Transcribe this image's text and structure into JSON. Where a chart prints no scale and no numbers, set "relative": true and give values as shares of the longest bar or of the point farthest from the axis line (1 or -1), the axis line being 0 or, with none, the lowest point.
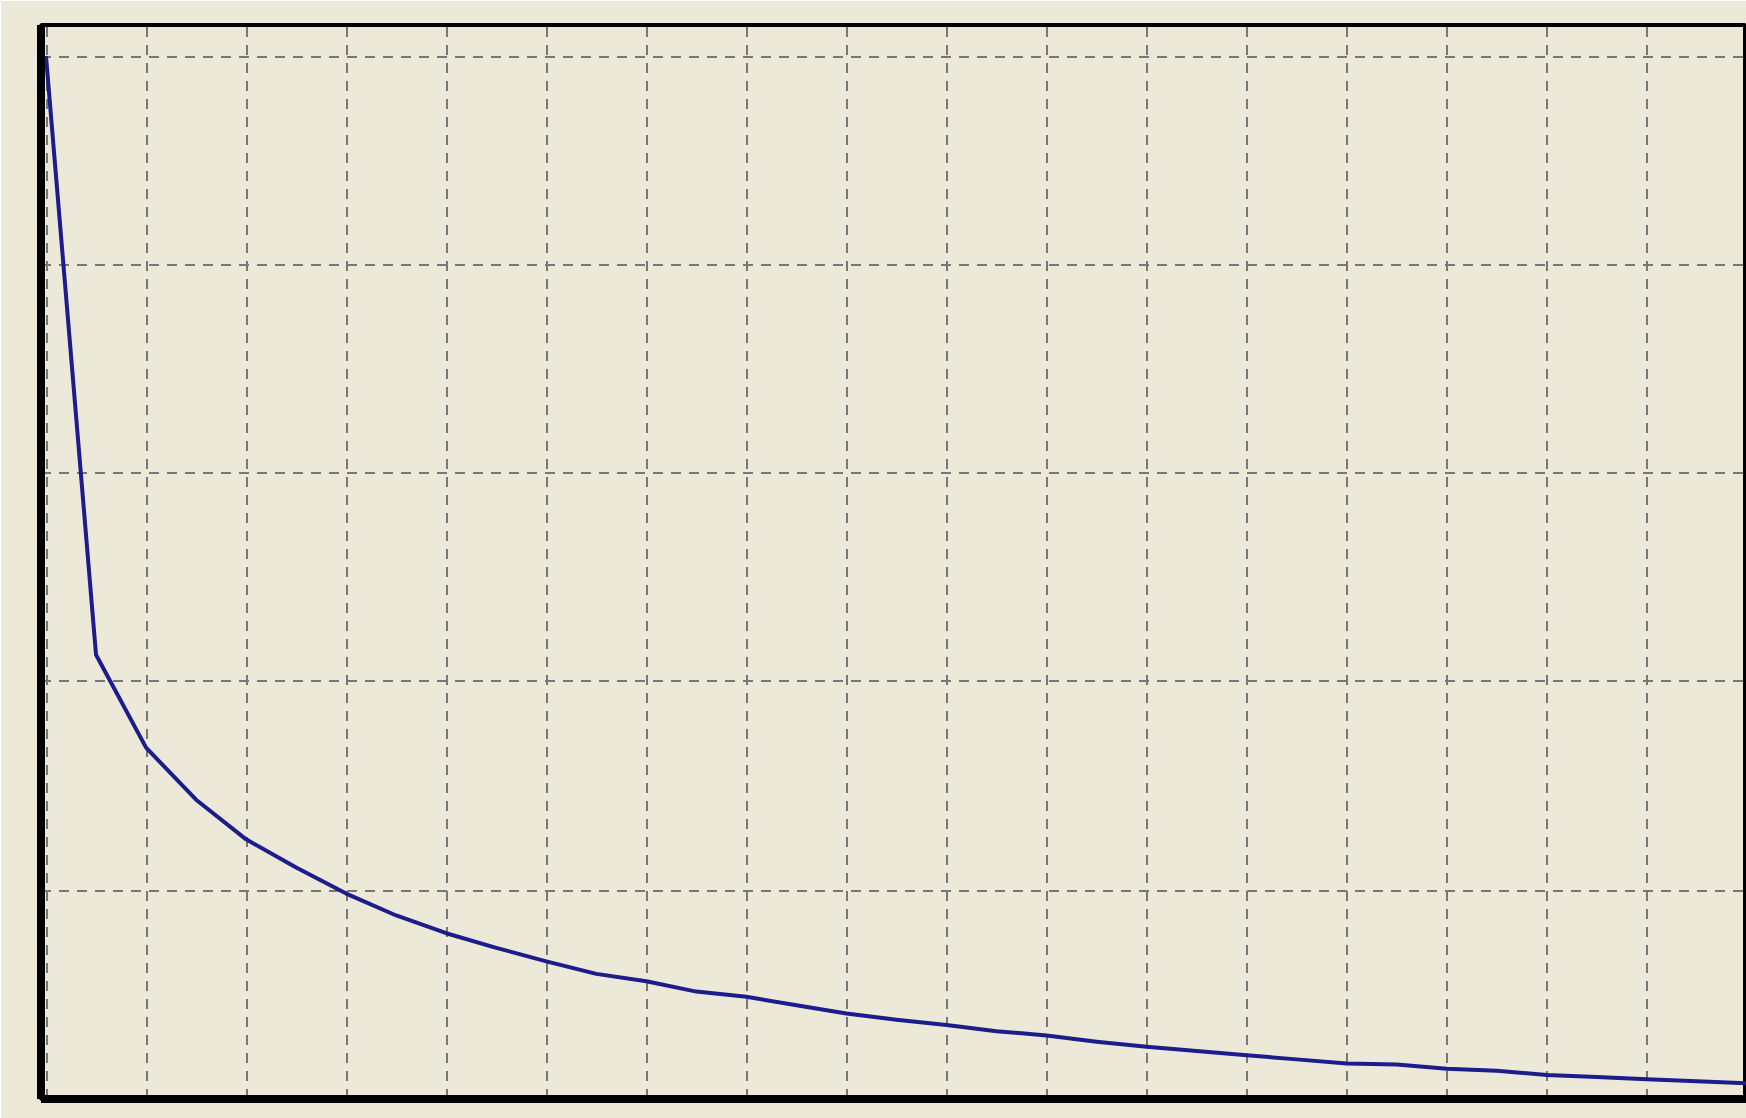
{
  "chart_data": {
    "type": "line",
    "relative": true,
    "grid": true,
    "color": "#1c1c8c",
    "categories": [
      null,
      null,
      null,
      null,
      null,
      null,
      null,
      null,
      null,
      null,
      null,
      null,
      null,
      null,
      null,
      null,
      null,
      null,
      null,
      null,
      null,
      null,
      null,
      null,
      null,
      null,
      null,
      null,
      null,
      null,
      null,
      null,
      null,
      null,
      null
    ],
    "values": [
      1.0,
      0.426,
      0.337,
      0.287,
      0.249,
      0.222,
      0.197,
      0.176,
      0.159,
      0.145,
      0.132,
      0.12,
      0.113,
      0.103,
      0.098,
      0.09,
      0.082,
      0.076,
      0.071,
      0.065,
      0.061,
      0.055,
      0.05,
      0.046,
      0.042,
      0.038,
      0.034,
      0.033,
      0.029,
      0.027,
      0.023,
      0.021,
      0.019,
      0.017,
      0.015
    ]
  }
}
